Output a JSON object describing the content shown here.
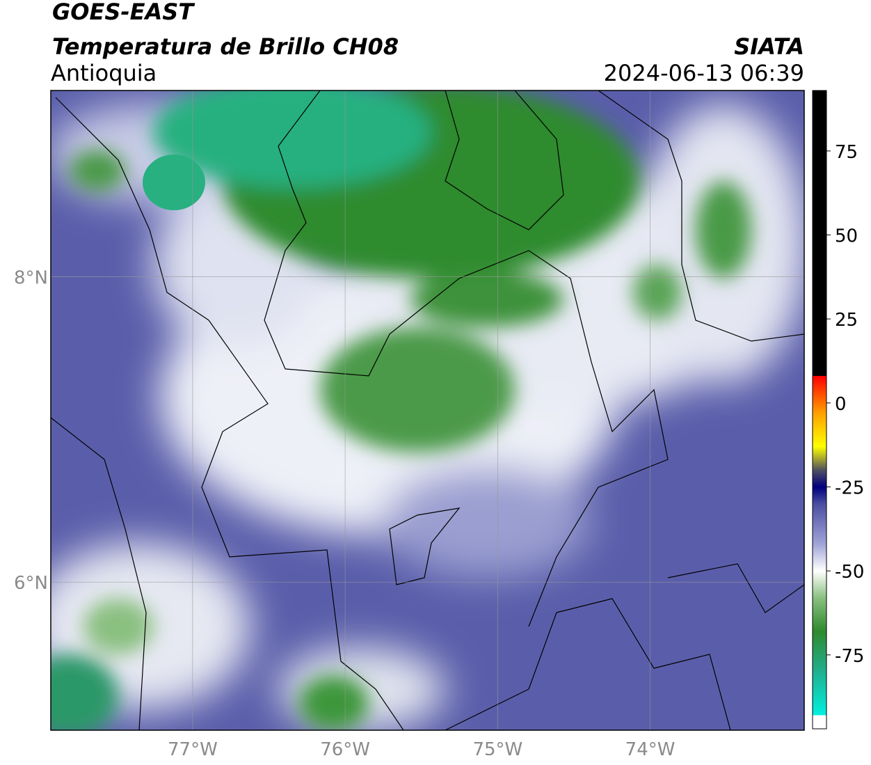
{
  "title": "GOES-EAST",
  "subtitle": "Temperatura de Brillo CH08",
  "region": "Antioquia",
  "source": "SIATA",
  "timestamp": "2024-06-13 06:39",
  "map": {
    "xlim": [
      -77.93,
      -72.99
    ],
    "ylim": [
      5.03,
      9.22
    ],
    "grid": true,
    "lon_ticks": [
      {
        "value": -77,
        "label": "77°W"
      },
      {
        "value": -76,
        "label": "76°W"
      },
      {
        "value": -75,
        "label": "75°W"
      },
      {
        "value": -74,
        "label": "74°W"
      }
    ],
    "lat_ticks": [
      {
        "value": 8,
        "label": "8°N"
      },
      {
        "value": 6,
        "label": "6°N"
      }
    ]
  },
  "colorbar": {
    "lim": [
      -97,
      93
    ],
    "ticks": [
      75,
      50,
      25,
      0,
      -25,
      -50,
      -75
    ],
    "stops": [
      {
        "value": -97,
        "color": "#ffffff"
      },
      {
        "value": -93,
        "color": "#ffffff"
      },
      {
        "value": -93,
        "color": "#00f0e0"
      },
      {
        "value": -80,
        "color": "#20b090"
      },
      {
        "value": -68,
        "color": "#2e8a2e"
      },
      {
        "value": -58,
        "color": "#8ac080"
      },
      {
        "value": -50,
        "color": "#ffffff"
      },
      {
        "value": -42,
        "color": "#a0a4d8"
      },
      {
        "value": -30,
        "color": "#4a4ea0"
      },
      {
        "value": -25,
        "color": "#000080"
      },
      {
        "value": -20,
        "color": "#505060"
      },
      {
        "value": -13,
        "color": "#ffff00"
      },
      {
        "value": -3,
        "color": "#ffa000"
      },
      {
        "value": 8,
        "color": "#ff0000"
      },
      {
        "value": 8,
        "color": "#000000"
      },
      {
        "value": 93,
        "color": "#000000"
      }
    ]
  }
}
